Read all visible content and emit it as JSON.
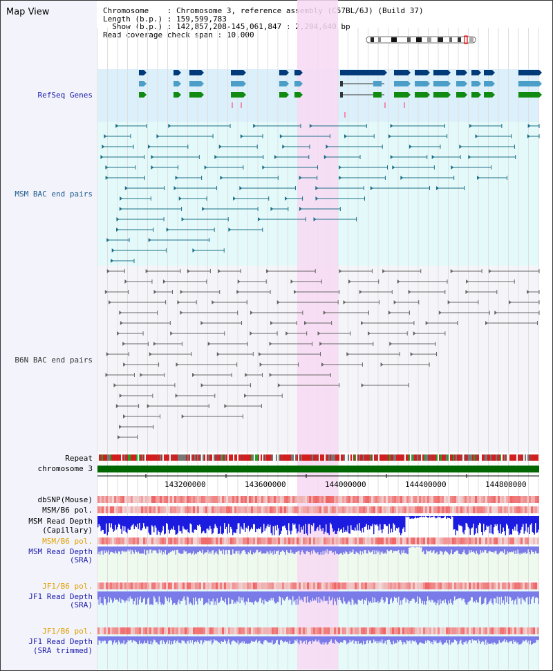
{
  "view": {
    "title": "Map View"
  },
  "info": {
    "chromosome_label": "Chromosome",
    "chromosome_value": "Chromosome 3, reference assembly (C57BL/6J) (Build 37)",
    "length_label": "Length (b.p.)",
    "length_value": "159,599,783",
    "show_label": "Show (b.p.)",
    "show_value": "142,857,208-145,061,847 : 2,204,640 bp",
    "span_label": "Read coverage check span",
    "span_value": "10,000"
  },
  "tracks": {
    "refseq": "RefSeq Genes",
    "msm_bac": "MSM BAC end pairs",
    "b6n_bac": "B6N BAC end pairs",
    "repeat": "Repeat",
    "chromosome": "chromosome 3",
    "dbsnp": "dbSNP(Mouse)",
    "msm_b6_pol_1": "MSM/B6 pol.",
    "msm_depth_cap_1": "MSM Read Depth",
    "msm_depth_cap_2": "(Capillary)",
    "msm_b6_pol_2": "MSM/B6 pol.",
    "msm_depth_sra_1": "MSM Read Depth",
    "msm_depth_sra_2": "(SRA)",
    "jf1_b6_pol_1": "JF1/B6 pol.",
    "jf1_depth_sra_1": "JF1 Read Depth",
    "jf1_depth_sra_2": "(SRA)",
    "jf1_b6_pol_2": "JF1/B6 pol.",
    "jf1_depth_trim_1": "JF1 Read Depth",
    "jf1_depth_trim_2": "(SRA trimmed)"
  },
  "axis": {
    "ticks": [
      "143200000",
      "143600000",
      "144000000",
      "144400000",
      "144800000"
    ]
  },
  "colors": {
    "label_blue": "#1a1aa8",
    "label_black": "#000000",
    "label_orange": "#e0a000",
    "refseq_bg": "#dcf0fb",
    "msm_bg": "#e4fafa",
    "b6n_bg": "#f5f5f9",
    "highlight": "#f8d9f3",
    "gene_dark": "#003a78",
    "gene_light": "#4a9ec8",
    "gene_green": "#108a10",
    "msm_pair": "#1a6e86",
    "b6n_pair": "#666666",
    "chromosome_bar": "#006600",
    "depth_capillary": "#1c1ce0",
    "depth_sra": "#7a7ae8"
  }
}
